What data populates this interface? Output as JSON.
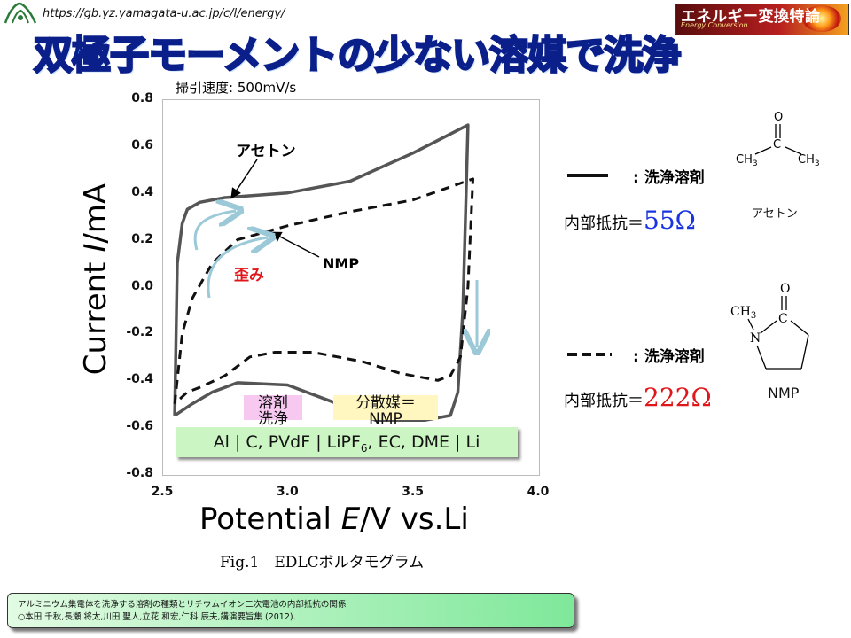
{
  "header": {
    "url": "https://gb.yz.yamagata-u.ac.jp/c/l/energy/",
    "brand_jp": "エネルギー変換特論",
    "brand_en": "Energy Conversion",
    "title": "双極子モーメントの少ない溶媒で洗浄"
  },
  "chart_data": {
    "type": "line",
    "sweep_label": "掃引速度: 500mV/s",
    "xlabel_parts": [
      "Potential ",
      "E",
      "/V vs.Li"
    ],
    "ylabel_parts": [
      "Current ",
      "I",
      "/mA"
    ],
    "xlim": [
      2.5,
      4.0
    ],
    "ylim": [
      -0.8,
      0.8
    ],
    "x_ticks": [
      "2.5",
      "3.0",
      "3.5",
      "4.0"
    ],
    "y_ticks": [
      "0.8",
      "0.6",
      "0.4",
      "0.2",
      "0.0",
      "-0.2",
      "-0.4",
      "-0.6",
      "-0.8"
    ],
    "series": [
      {
        "name": "アセトン",
        "style": "solid",
        "color": "#555555",
        "x": [
          2.55,
          2.56,
          2.58,
          2.6,
          2.65,
          2.75,
          3.0,
          3.25,
          3.5,
          3.72,
          3.7,
          3.68,
          3.65,
          3.55,
          3.35,
          3.2,
          3.0,
          2.8,
          2.7,
          2.62,
          2.55
        ],
        "y": [
          -0.55,
          0.1,
          0.27,
          0.33,
          0.36,
          0.38,
          0.4,
          0.45,
          0.57,
          0.69,
          -0.1,
          -0.45,
          -0.55,
          -0.57,
          -0.57,
          -0.5,
          -0.42,
          -0.41,
          -0.45,
          -0.5,
          -0.55
        ]
      },
      {
        "name": "NMP",
        "style": "dashed",
        "color": "#111111",
        "x": [
          2.55,
          2.58,
          2.62,
          2.7,
          2.8,
          3.0,
          3.25,
          3.5,
          3.74,
          3.72,
          3.69,
          3.65,
          3.6,
          3.45,
          3.3,
          3.1,
          2.95,
          2.85,
          2.75,
          2.65,
          2.6,
          2.55
        ],
        "y": [
          -0.5,
          -0.2,
          -0.05,
          0.1,
          0.2,
          0.26,
          0.32,
          0.37,
          0.46,
          0.0,
          -0.3,
          -0.38,
          -0.4,
          -0.37,
          -0.32,
          -0.28,
          -0.28,
          -0.3,
          -0.38,
          -0.43,
          -0.45,
          -0.5
        ]
      }
    ],
    "annotations": {
      "acetone": "アセトン",
      "nmp": "NMP",
      "distortion": "歪み"
    },
    "legend": {
      "solid_label": ": 洗浄溶剤",
      "dashed_label": ": 洗浄溶剤",
      "resistance_prefix": "内部抵抗＝",
      "acetone_resistance": "55Ω",
      "nmp_resistance": "222Ω",
      "acetone_name": "アセトン",
      "nmp_name": "NMP",
      "accent_blue": "#1a35e0",
      "accent_red": "#e0161b"
    },
    "caption": "Fig.1　EDLCボルタモグラム",
    "cell": {
      "text_a": "Al | C, PVdF | LiPF",
      "text_sub": "6",
      "text_b": ", EC, DME | Li",
      "tag_solvent": "溶剤\n洗浄",
      "tag_dispersant": "分散媒＝\nNMP"
    }
  },
  "reference": {
    "line1": "アルミニウム集電体を洗浄する溶剤の種類とリチウムイオン二次電池の内部抵抗の関係",
    "line2": "○本田 千秋,長瀬 将太,川田 聖人,立花 和宏,仁科 辰夫,講演要旨集 (2012)."
  }
}
